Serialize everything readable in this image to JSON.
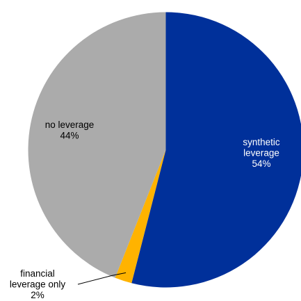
{
  "chart_data": {
    "type": "pie",
    "categories": [
      "synthetic leverage",
      "financial leverage only",
      "no leverage"
    ],
    "values": [
      54,
      2,
      44
    ],
    "colors": [
      "#00309A",
      "#FFB300",
      "#ABABAB"
    ],
    "labels": [
      {
        "lines": [
          "synthetic",
          "leverage"
        ],
        "pct": "54%"
      },
      {
        "lines": [
          "financial",
          "leverage only"
        ],
        "pct": "2%"
      },
      {
        "lines": [
          "no leverage"
        ],
        "pct": "44%"
      }
    ]
  }
}
